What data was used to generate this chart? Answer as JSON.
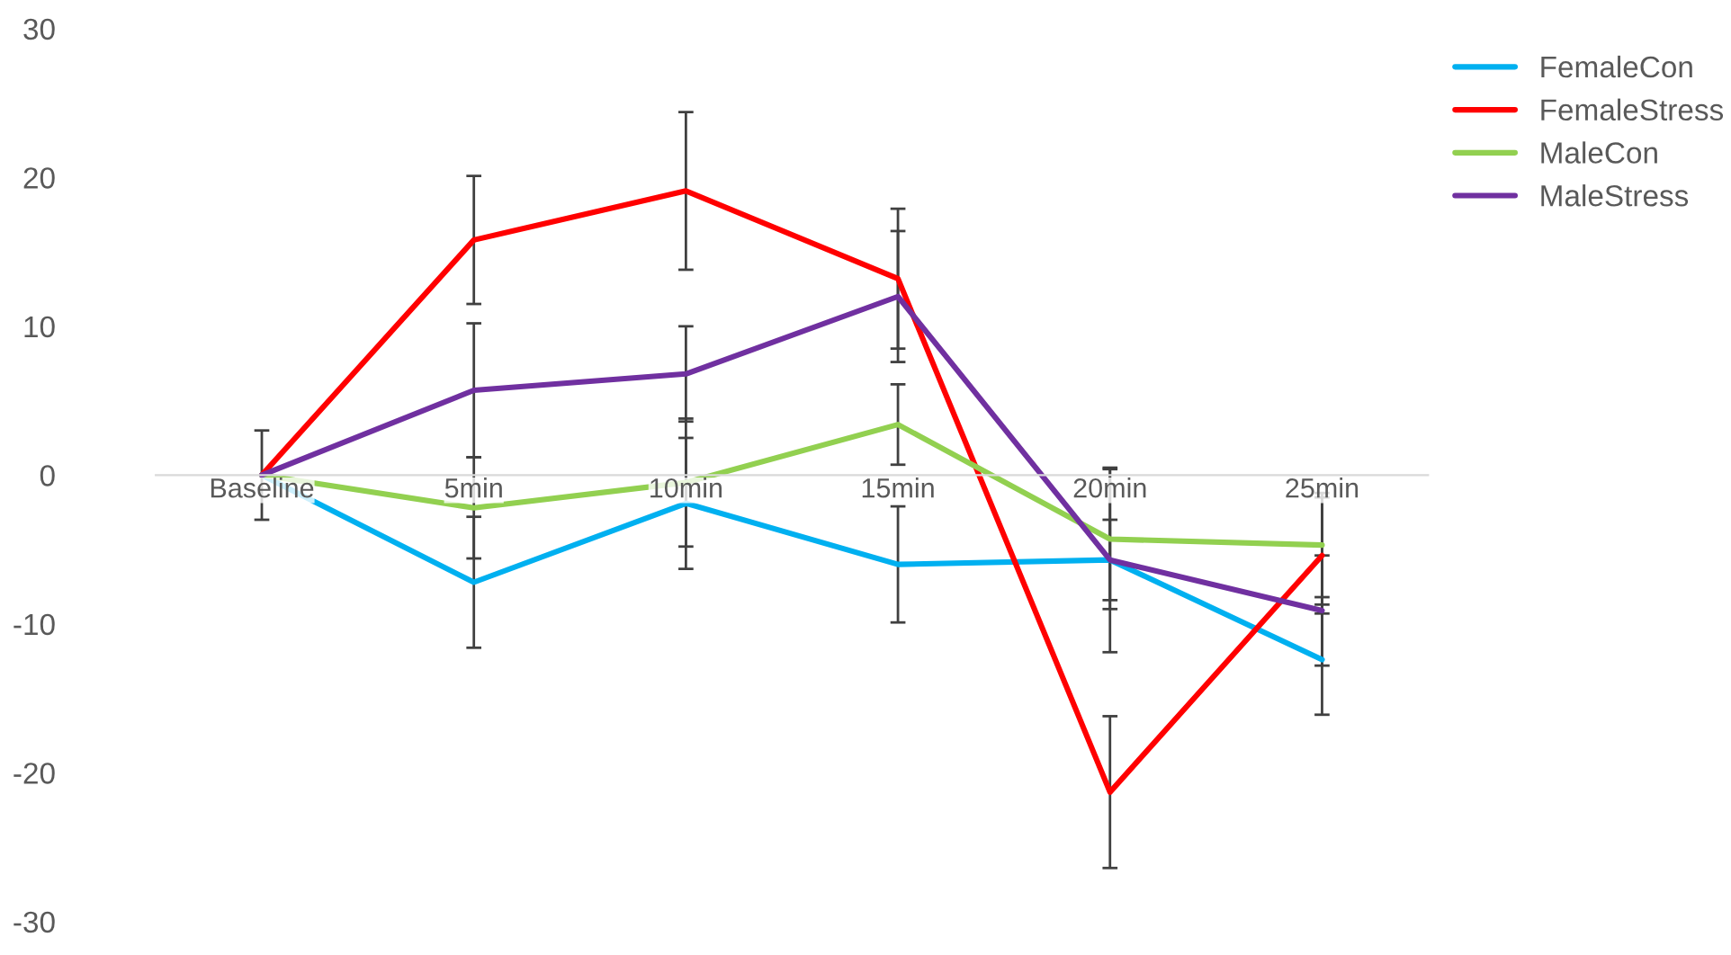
{
  "chart_data": {
    "type": "line",
    "categories": [
      "Baseline",
      "5min",
      "10min",
      "15min",
      "20min",
      "25min"
    ],
    "series": [
      {
        "name": "FemaleCon",
        "color": "#00b0f0",
        "values": [
          0,
          -7.2,
          -1.9,
          -6.0,
          -5.7,
          -12.4
        ],
        "errors": [
          3,
          4.4,
          4.4,
          3.9,
          6.2,
          3.7
        ]
      },
      {
        "name": "FemaleStress",
        "color": "#ff0000",
        "values": [
          0,
          15.8,
          19.1,
          13.2,
          -21.3,
          -5.4
        ],
        "errors": [
          null,
          4.3,
          5.3,
          4.7,
          5.1,
          3.9
        ]
      },
      {
        "name": "MaleCon",
        "color": "#92d050",
        "values": [
          0,
          -2.2,
          -0.5,
          3.4,
          -4.3,
          -4.7
        ],
        "errors": [
          null,
          3.4,
          4.3,
          2.7,
          4.7,
          3.5
        ]
      },
      {
        "name": "MaleStress",
        "color": "#7030a0",
        "values": [
          0,
          5.7,
          6.8,
          12.0,
          -5.7,
          -9.1
        ],
        "errors": [
          null,
          4.5,
          3.2,
          4.4,
          2.7,
          3.7
        ]
      }
    ],
    "ylim": [
      -30,
      30
    ],
    "yticks": [
      -30,
      -20,
      -10,
      0,
      10,
      20,
      30
    ],
    "grid": false,
    "legend": "top right",
    "marker": "none",
    "line_style": "solid"
  }
}
